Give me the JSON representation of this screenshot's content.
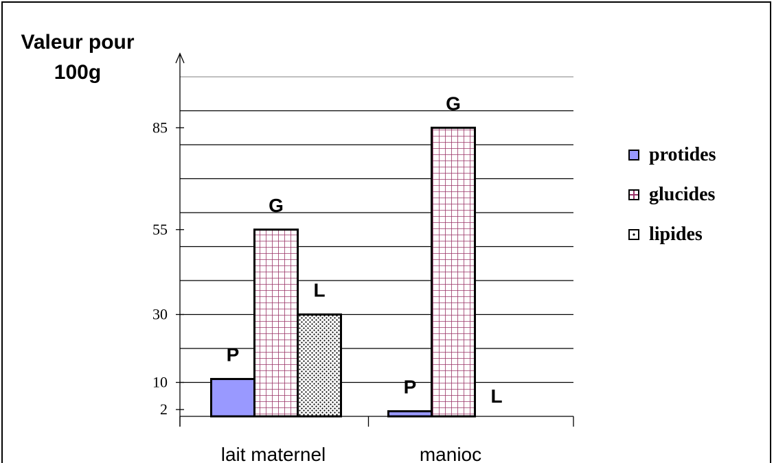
{
  "chart_data": {
    "type": "bar",
    "ylabel_line1": "Valeur pour",
    "ylabel_line2": "100g",
    "categories": [
      "lait maternel",
      "manioc"
    ],
    "series": [
      {
        "name": "protides",
        "letter": "P",
        "values": [
          11,
          1.5
        ],
        "color": "#9999ff",
        "pattern": "solid"
      },
      {
        "name": "glucides",
        "letter": "G",
        "values": [
          55,
          85
        ],
        "color": "#993366",
        "pattern": "grid"
      },
      {
        "name": "lipides",
        "letter": "L",
        "values": [
          30,
          0
        ],
        "color": "#000000",
        "pattern": "dots"
      }
    ],
    "ytick_labels": [
      "2",
      "10",
      "30",
      "55",
      "85"
    ],
    "ytick_values": [
      2,
      10,
      30,
      55,
      85
    ],
    "gridline_values": [
      10,
      20,
      30,
      40,
      50,
      60,
      70,
      80,
      90,
      100
    ],
    "ylim": [
      0,
      100
    ],
    "legend_position": "right",
    "grid": true
  }
}
